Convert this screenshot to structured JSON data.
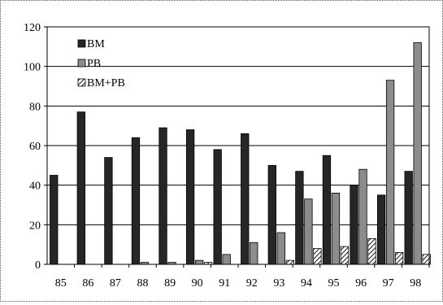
{
  "chart_data": {
    "type": "bar",
    "title": "",
    "xlabel": "",
    "ylabel": "",
    "categories": [
      "85",
      "86",
      "87",
      "88",
      "89",
      "90",
      "91",
      "92",
      "93",
      "94",
      "95",
      "96",
      "97",
      "98"
    ],
    "ylim": [
      0,
      120
    ],
    "yticks": [
      0,
      20,
      40,
      60,
      80,
      100,
      120
    ],
    "grid": "horizontal",
    "legend": "top-left",
    "series": [
      {
        "name": "BM",
        "color": "#262626",
        "pattern": "solid",
        "values": [
          45,
          77,
          54,
          64,
          69,
          68,
          58,
          66,
          50,
          47,
          55,
          40,
          35,
          47
        ]
      },
      {
        "name": "PB",
        "color": "#8c8c8c",
        "pattern": "solid",
        "values": [
          0,
          0,
          0,
          1,
          1,
          2,
          5,
          11,
          16,
          33,
          36,
          48,
          93,
          112
        ]
      },
      {
        "name": "BM+PB",
        "color": "#222222",
        "pattern": "diagonal-hatch",
        "values": [
          0,
          0,
          0,
          0,
          0,
          1,
          0,
          0,
          2,
          8,
          9,
          13,
          6,
          5
        ]
      }
    ]
  }
}
